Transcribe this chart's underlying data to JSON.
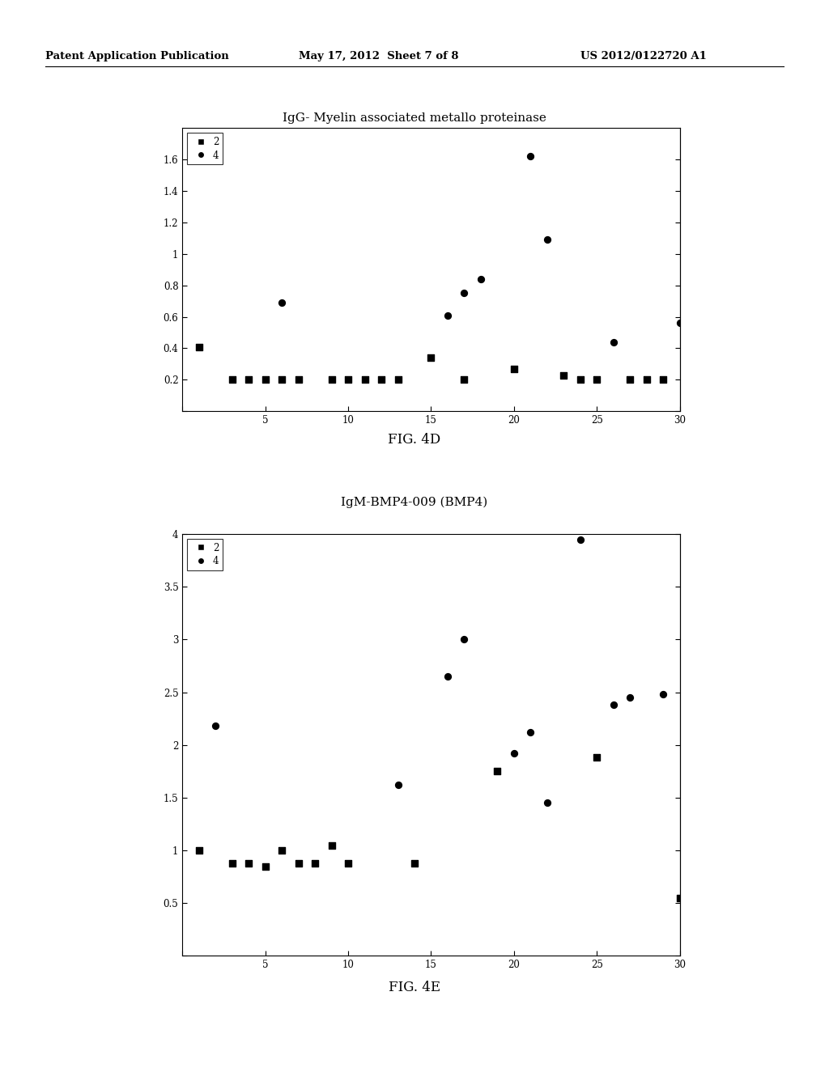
{
  "fig4d": {
    "title": "IgG- Myelin associated metallo proteinase",
    "figcaption": "FIG. 4D",
    "xlim": [
      0,
      30
    ],
    "ylim": [
      0,
      1.8
    ],
    "xticks": [
      0,
      5,
      10,
      15,
      20,
      25,
      30
    ],
    "yticks": [
      0,
      0.2,
      0.4,
      0.6,
      0.8,
      1.0,
      1.2,
      1.4,
      1.6
    ],
    "ytick_labels": [
      "",
      "0.2",
      "0.4",
      "0.6",
      "0.8",
      "1",
      "1.2",
      "1.4",
      "1.6"
    ],
    "xtick_labels": [
      "",
      "5",
      "10",
      "15",
      "20",
      "25",
      "30"
    ],
    "series2_x": [
      1,
      3,
      4,
      5,
      6,
      7,
      9,
      10,
      11,
      12,
      13,
      15,
      17,
      20,
      23,
      24,
      25,
      27,
      28,
      29
    ],
    "series2_y": [
      0.41,
      0.2,
      0.2,
      0.2,
      0.2,
      0.2,
      0.2,
      0.2,
      0.2,
      0.2,
      0.2,
      0.34,
      0.2,
      0.27,
      0.23,
      0.2,
      0.2,
      0.2,
      0.2,
      0.2
    ],
    "series4_x": [
      6,
      16,
      17,
      18,
      21,
      22,
      26,
      30
    ],
    "series4_y": [
      0.69,
      0.61,
      0.75,
      0.84,
      1.62,
      1.09,
      0.44,
      0.56
    ]
  },
  "fig4e": {
    "title": "IgM-BMP4-009 (BMP4)",
    "figcaption": "FIG. 4E",
    "xlim": [
      0,
      30
    ],
    "ylim": [
      0,
      4
    ],
    "xticks": [
      0,
      5,
      10,
      15,
      20,
      25,
      30
    ],
    "yticks": [
      0,
      0.5,
      1.0,
      1.5,
      2.0,
      2.5,
      3.0,
      3.5,
      4.0
    ],
    "ytick_labels": [
      "",
      "0.5",
      "1",
      "1.5",
      "2",
      "2.5",
      "3",
      "3.5",
      "4"
    ],
    "xtick_labels": [
      "",
      "5",
      "10",
      "15",
      "20",
      "25",
      "30"
    ],
    "series2_x": [
      1,
      3,
      4,
      5,
      6,
      7,
      8,
      9,
      10,
      14,
      19,
      25,
      30
    ],
    "series2_y": [
      1.0,
      0.88,
      0.88,
      0.85,
      1.0,
      0.88,
      0.88,
      1.05,
      0.88,
      0.88,
      1.75,
      1.88,
      0.55
    ],
    "series4_x": [
      2,
      13,
      16,
      17,
      20,
      21,
      22,
      24,
      26,
      27,
      29
    ],
    "series4_y": [
      2.18,
      1.62,
      2.65,
      3.0,
      1.92,
      2.12,
      1.45,
      3.95,
      2.38,
      2.45,
      2.48
    ]
  },
  "header_left": "Patent Application Publication",
  "header_center": "May 17, 2012  Sheet 7 of 8",
  "header_right": "US 2012/0122720 A1",
  "color": "#000000",
  "bg_color": "#ffffff"
}
